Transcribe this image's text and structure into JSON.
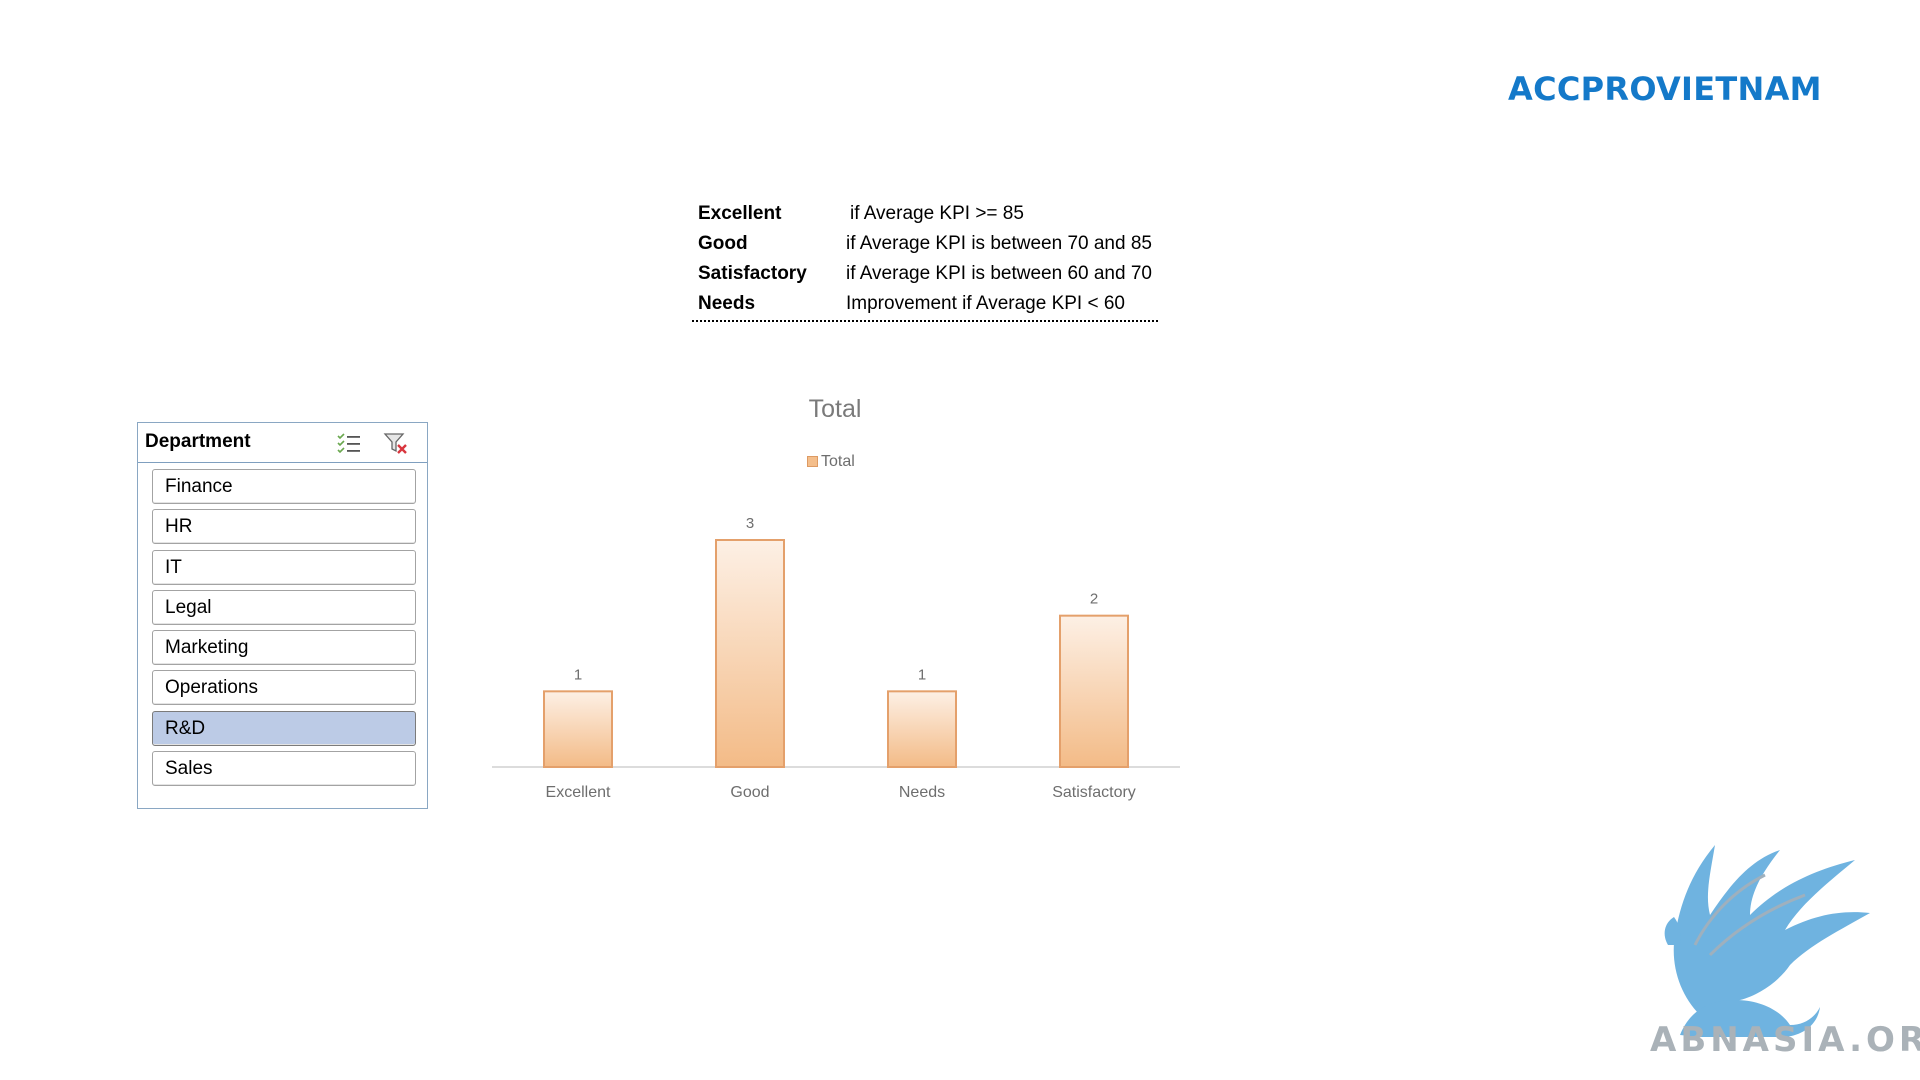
{
  "brand": {
    "title": "ACCPROVIETNAM",
    "color": "#1479c9"
  },
  "rules": [
    {
      "term": "Excellent",
      "description": "if Average KPI >= 85"
    },
    {
      "term": "Good",
      "description": "if Average KPI is between 70 and 85"
    },
    {
      "term": "Satisfactory",
      "description": "if Average KPI is between 60 and 70"
    },
    {
      "term": "Needs",
      "description": "Improvement if Average KPI < 60"
    }
  ],
  "slicer": {
    "title": "Department",
    "icons": [
      "multi-select-icon",
      "clear-filter-icon"
    ],
    "items": [
      {
        "label": "Finance",
        "selected": false
      },
      {
        "label": "HR",
        "selected": false
      },
      {
        "label": "IT",
        "selected": false
      },
      {
        "label": "Legal",
        "selected": false
      },
      {
        "label": "Marketing",
        "selected": false
      },
      {
        "label": "Operations",
        "selected": false
      },
      {
        "label": "R&D",
        "selected": true
      },
      {
        "label": "Sales",
        "selected": false
      }
    ],
    "selected_color": "#bccbe6"
  },
  "chart_data": {
    "type": "bar",
    "title": "Total",
    "legend": "top",
    "series": [
      {
        "name": "Total",
        "values": [
          1,
          3,
          1,
          2
        ]
      }
    ],
    "categories": [
      "Excellent",
      "Good",
      "Needs",
      "Satisfactory"
    ],
    "ylim": [
      0,
      3
    ],
    "grid": false,
    "data_labels": true,
    "bar_color": "#f4be8b",
    "bar_border": "#e4a06b"
  },
  "logo": {
    "text": "ABNASIA.ORG",
    "icon": "griffin-logo-icon",
    "color": "#6fb3e0"
  }
}
